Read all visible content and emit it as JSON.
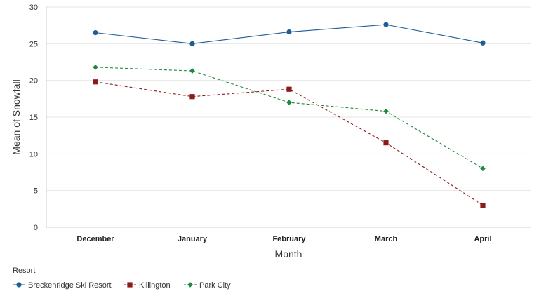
{
  "chart_data": {
    "type": "line",
    "title": "",
    "xlabel": "Month",
    "ylabel": "Mean of Snowfall",
    "categories": [
      "December",
      "January",
      "February",
      "March",
      "April"
    ],
    "ylim": [
      0,
      30
    ],
    "yticks": [
      0,
      5,
      10,
      15,
      20,
      25,
      30
    ],
    "grid": true,
    "legend": {
      "title": "Resort",
      "position": "bottom-left"
    },
    "series": [
      {
        "name": "Breckenridge Ski Resort",
        "values": [
          26.5,
          25.0,
          26.6,
          27.6,
          25.1
        ],
        "color": "#1f5c99",
        "marker": "circle",
        "line_style": "solid"
      },
      {
        "name": "Killington",
        "values": [
          19.8,
          17.8,
          18.8,
          11.5,
          3.0
        ],
        "color": "#8b1a1a",
        "marker": "square",
        "line_style": "dashed"
      },
      {
        "name": "Park City",
        "values": [
          21.8,
          21.3,
          17.0,
          15.8,
          8.0
        ],
        "color": "#1e8a3c",
        "marker": "diamond",
        "line_style": "dashed"
      }
    ]
  }
}
